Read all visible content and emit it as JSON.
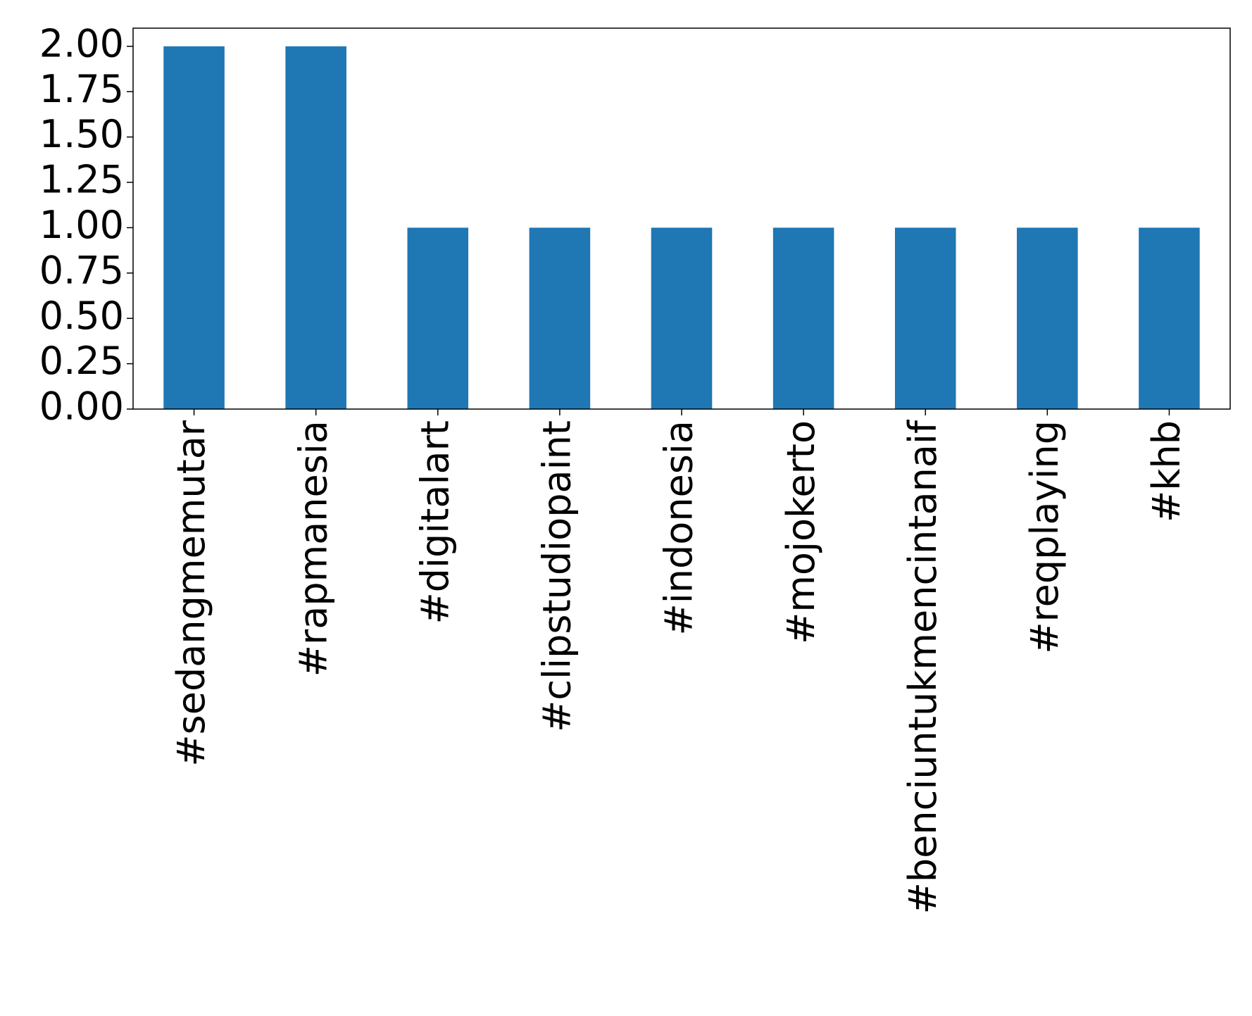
{
  "chart_data": {
    "type": "bar",
    "categories": [
      "#sedangmemutar",
      "#rapmanesia",
      "#digitalart",
      "#clipstudiopaint",
      "#indonesia",
      "#mojokerto",
      "#benciuntukmencintanaif",
      "#reqplaying",
      "#khb"
    ],
    "values": [
      2,
      2,
      1,
      1,
      1,
      1,
      1,
      1,
      1
    ],
    "color": "#1f77b4",
    "ylim": [
      0,
      2.1
    ],
    "yticks": [
      {
        "value": 0,
        "label": "0.00"
      },
      {
        "value": 0.25,
        "label": "0.25"
      },
      {
        "value": 0.5,
        "label": "0.50"
      },
      {
        "value": 0.75,
        "label": "0.75"
      },
      {
        "value": 1,
        "label": "1.00"
      },
      {
        "value": 1.25,
        "label": "1.25"
      },
      {
        "value": 1.5,
        "label": "1.50"
      },
      {
        "value": 1.75,
        "label": "1.75"
      },
      {
        "value": 2,
        "label": "2.00"
      }
    ],
    "grid": false
  }
}
